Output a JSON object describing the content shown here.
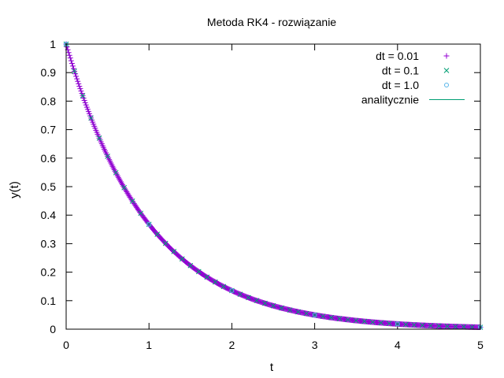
{
  "chart_data": {
    "type": "scatter",
    "title": "Metoda RK4 - rozwiązanie",
    "xlabel": "t",
    "ylabel": "y(t)",
    "xlim": [
      0,
      5
    ],
    "ylim": [
      0,
      1
    ],
    "x_ticks": [
      "0",
      "1",
      "2",
      "3",
      "4",
      "5"
    ],
    "y_ticks": [
      "0",
      "0.1",
      "0.2",
      "0.3",
      "0.4",
      "0.5",
      "0.6",
      "0.7",
      "0.8",
      "0.9",
      "1"
    ],
    "grid": false,
    "legend_position": "top-right",
    "function": "y(t) = exp(-t)",
    "series": [
      {
        "name": "dt = 0.01",
        "marker": "plus",
        "color": "#9400d3",
        "t_start": 0,
        "t_end": 5,
        "t_step": 0.01
      },
      {
        "name": "dt = 0.1",
        "marker": "cross",
        "color": "#009e73",
        "t_start": 0,
        "t_end": 5,
        "t_step": 0.1
      },
      {
        "name": "dt = 1.0",
        "marker": "circle",
        "color": "#56b4e9",
        "t_start": 0,
        "t_end": 5,
        "t_step": 1.0
      },
      {
        "name": "analitycznie",
        "marker": "line",
        "color": "#009e73",
        "t_start": 0,
        "t_end": 5,
        "t_step": 0.01
      }
    ]
  }
}
